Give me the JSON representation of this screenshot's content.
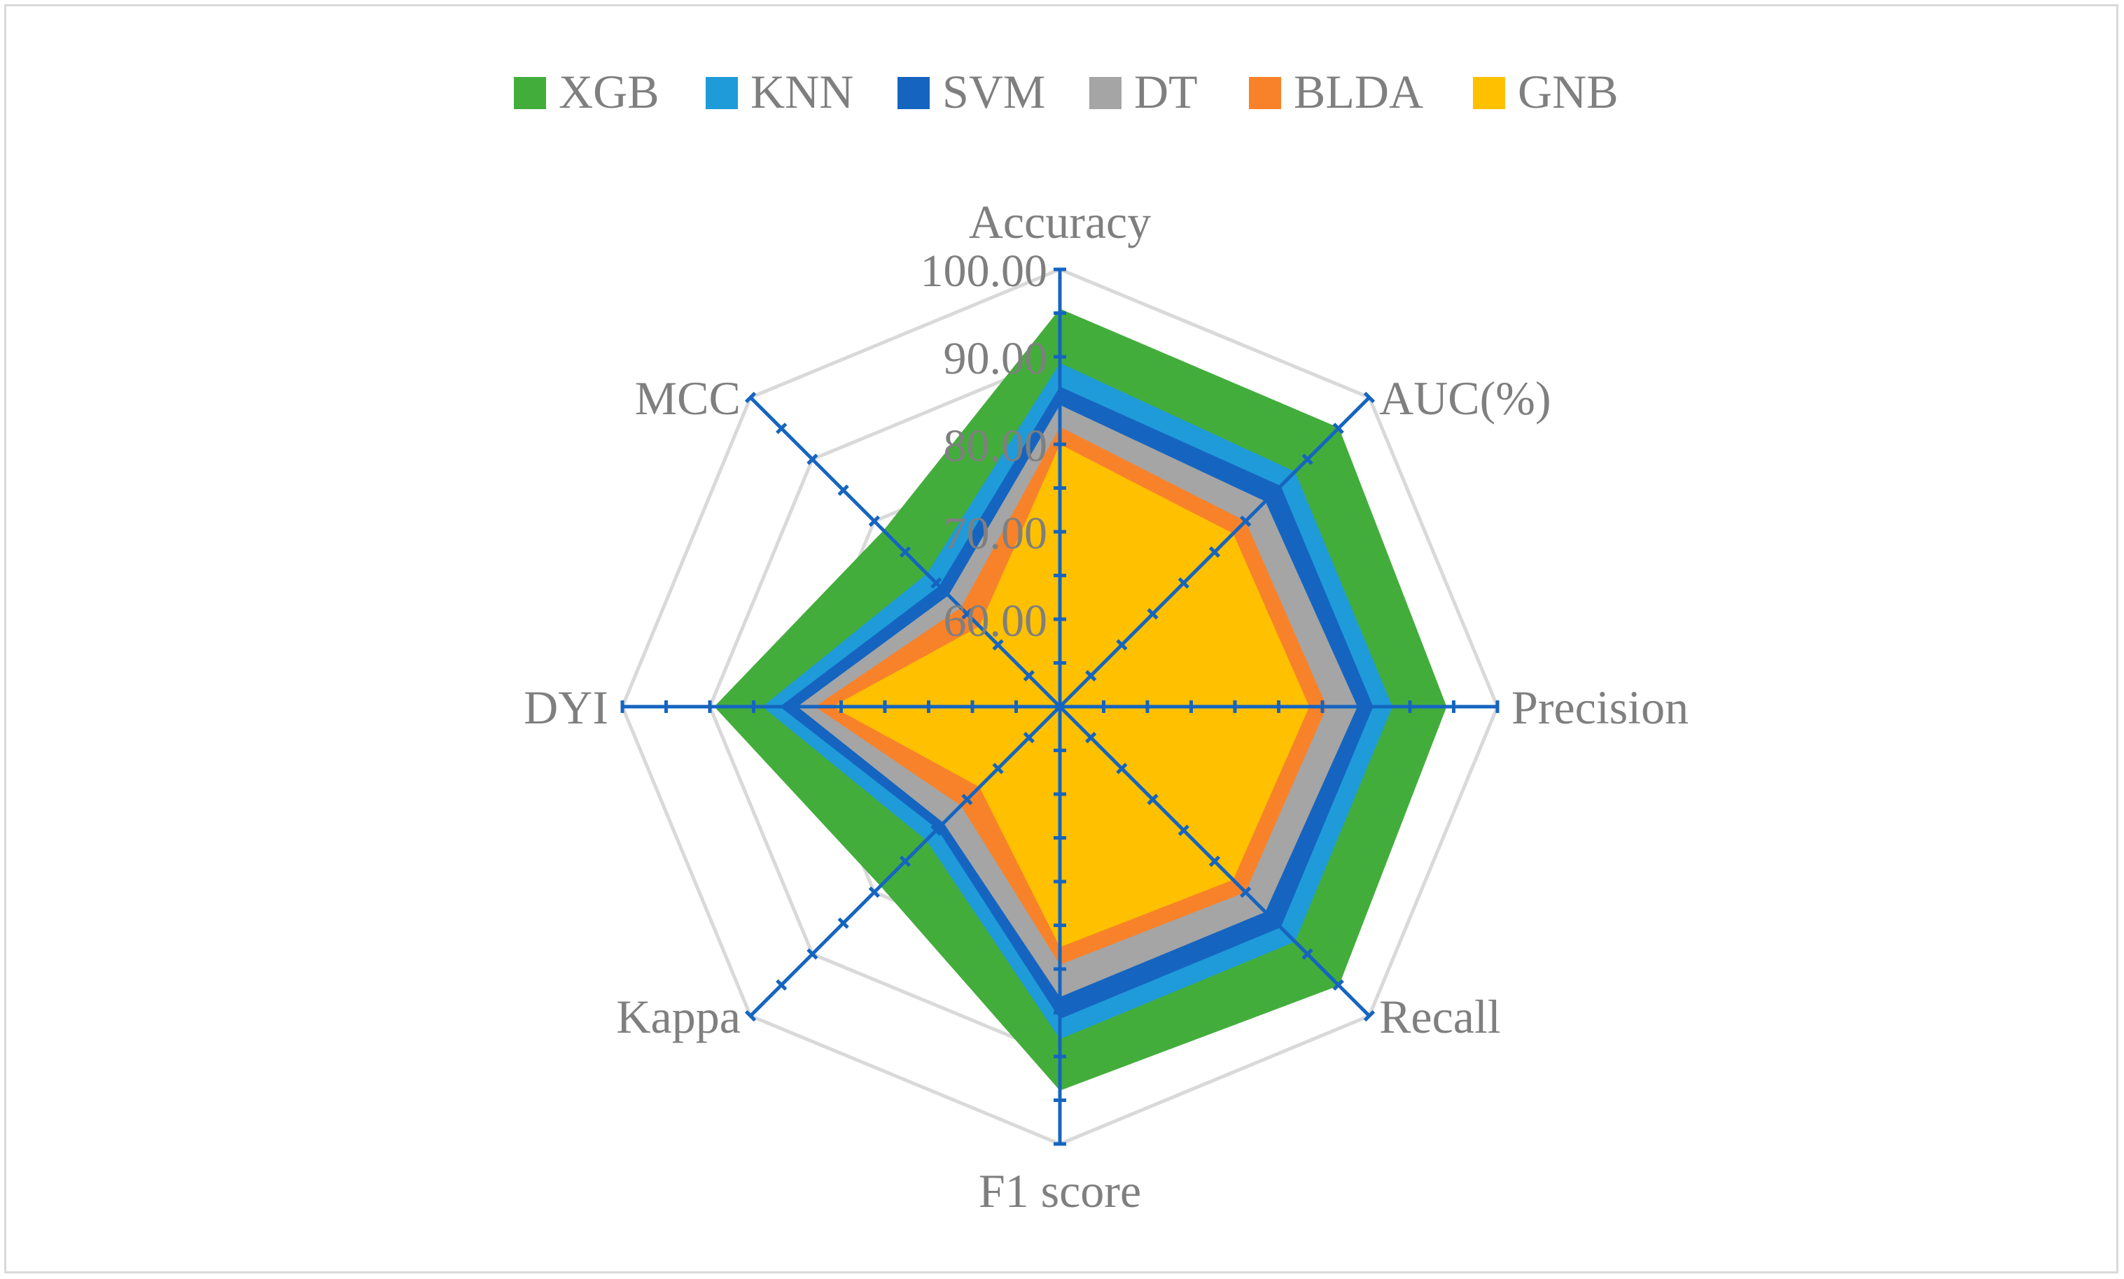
{
  "chart_data": {
    "type": "radar",
    "axes": [
      "Accuracy",
      "AUC(%)",
      "Precision",
      "Recall",
      "F1 score",
      "Kappa",
      "DYI",
      "MCC"
    ],
    "rlim": [
      50,
      100
    ],
    "tick_labels": [
      "60.00",
      "70.00",
      "80.00",
      "90.00",
      "100.00"
    ],
    "grid": true,
    "legend_position": "top",
    "series": [
      {
        "name": "XGB",
        "color": "#43ad3c",
        "values": [
          95.5,
          95.1,
          94.2,
          95.1,
          93.9,
          79.0,
          89.5,
          78.5
        ]
      },
      {
        "name": "KNN",
        "color": "#1f9bd9",
        "values": [
          89.3,
          88.0,
          88.0,
          88.0,
          88.0,
          71.6,
          84.0,
          71.5
        ]
      },
      {
        "name": "SVM",
        "color": "#1565c0",
        "values": [
          86.6,
          85.7,
          85.8,
          85.7,
          85.7,
          69.8,
          82.0,
          69.5
        ]
      },
      {
        "name": "DT",
        "color": "#a5a5a5",
        "values": [
          84.5,
          83.2,
          84.0,
          83.2,
          83.2,
          68.8,
          80.0,
          68.0
        ]
      },
      {
        "name": "BLDA",
        "color": "#f8822a",
        "values": [
          82.0,
          80.0,
          80.5,
          80.0,
          79.5,
          66.0,
          78.0,
          66.0
        ]
      },
      {
        "name": "GNB",
        "color": "#ffc000",
        "values": [
          80.0,
          78.0,
          78.5,
          78.0,
          77.5,
          63.0,
          76.0,
          63.0
        ]
      }
    ]
  }
}
